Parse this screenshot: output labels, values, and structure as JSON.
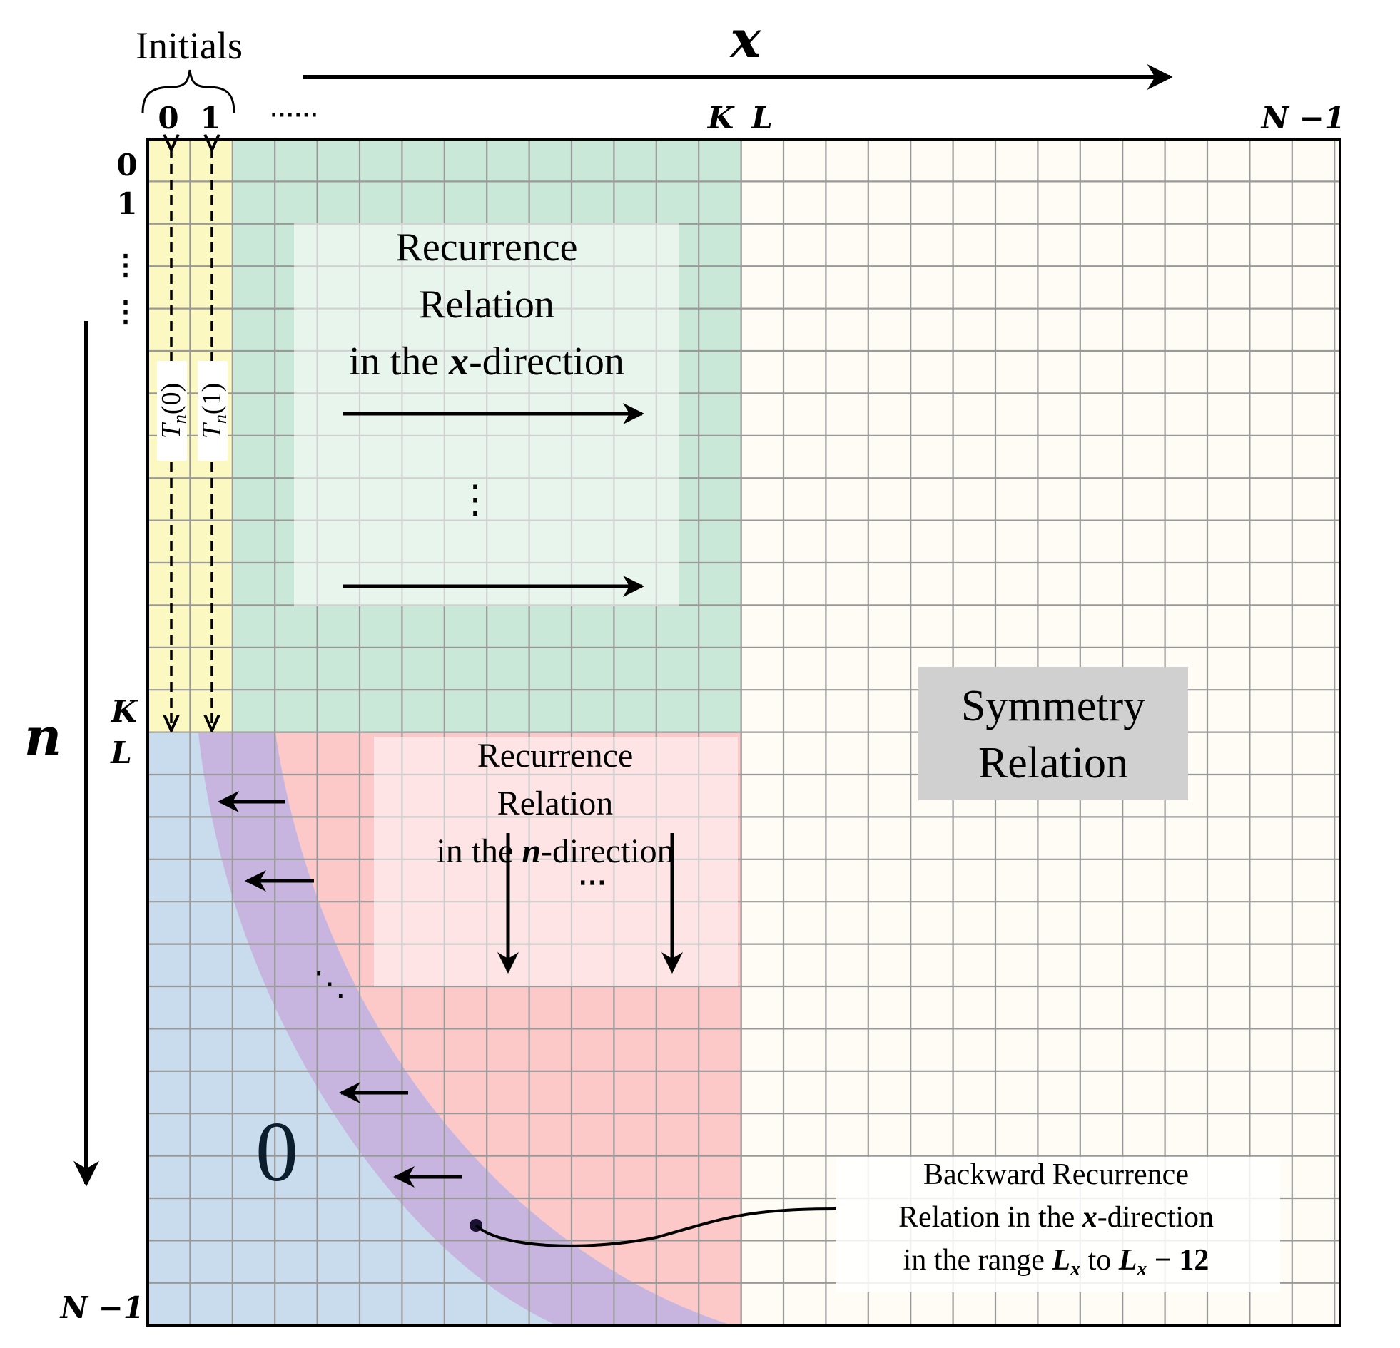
{
  "axes": {
    "x_symbol": "x",
    "n_symbol": "n",
    "x_ticks": {
      "zero": "0",
      "one": "1",
      "dots": "⋯⋯",
      "K": "K",
      "L": "L",
      "N1": "N −1"
    },
    "n_ticks": {
      "zero": "0",
      "one": "1",
      "dots": "⋮",
      "dots2": "⋮",
      "K": "K",
      "L": "L",
      "N1": "N −1"
    }
  },
  "initials": {
    "label": "Initials",
    "col0_label": {
      "base": "T",
      "sub": "n",
      "arg": "(0)"
    },
    "col1_label": {
      "base": "T",
      "sub": "n",
      "arg": "(1)"
    }
  },
  "regions": {
    "green": {
      "line1": "Recurrence",
      "line2": "Relation",
      "line3_pre": "in the ",
      "line3_var": "x",
      "line3_post": "-direction",
      "dots": "⋮"
    },
    "red": {
      "line1": "Recurrence",
      "line2": "Relation",
      "line3_pre": "in the ",
      "line3_var": "n",
      "line3_post": "-direction",
      "dots": "⋯"
    },
    "symmetry": {
      "line1": "Symmetry",
      "line2": "Relation"
    },
    "zero": {
      "label": "0",
      "dots": "⋱"
    },
    "backward": {
      "line1": "Backward Recurrence",
      "line2_pre": "Relation in the ",
      "line2_var": "x",
      "line2_post": "-direction",
      "line3_pre": "in the range ",
      "line3_L1": "L",
      "line3_sub1": "x",
      "line3_mid": " to ",
      "line3_L2": "L",
      "line3_sub2": "x",
      "line3_post": " − 12"
    }
  },
  "colors": {
    "yellow": "#fbf8c1",
    "green": "#cae8d8",
    "blue": "#c8dcee",
    "purple": "#c7b5df",
    "red": "#fcc8c8",
    "cream": "#fefcf5",
    "grid": "#999999",
    "symmetry_box": "#d0d0d0"
  }
}
